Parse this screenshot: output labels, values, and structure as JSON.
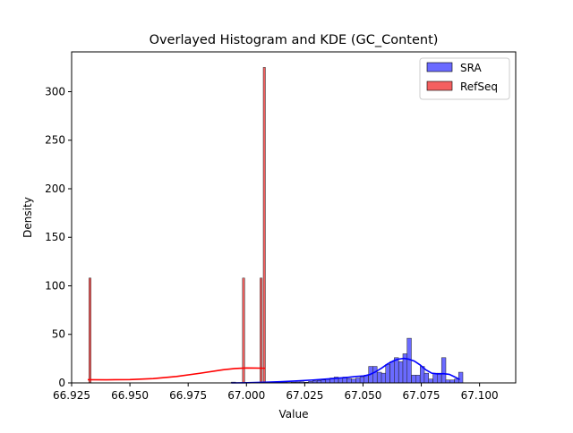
{
  "chart_data": {
    "type": "bar",
    "title": "Overlayed Histogram and KDE (GC_Content)",
    "xlabel": "Value",
    "ylabel": "Density",
    "xlim": [
      66.925,
      67.1155
    ],
    "ylim": [
      0,
      341
    ],
    "xticks": [
      66.925,
      66.95,
      66.975,
      67.0,
      67.025,
      67.05,
      67.075,
      67.1
    ],
    "xtick_labels": [
      "66.925",
      "66.950",
      "66.975",
      "67.000",
      "67.025",
      "67.050",
      "67.075",
      "67.100"
    ],
    "yticks": [
      0,
      50,
      100,
      150,
      200,
      250,
      300
    ],
    "ytick_labels": [
      "0",
      "50",
      "100",
      "150",
      "200",
      "250",
      "300"
    ],
    "grid": false,
    "legend": {
      "position": "upper right",
      "entries": [
        "SRA",
        "RefSeq"
      ]
    },
    "series": [
      {
        "name": "SRA",
        "color": "#0000ff",
        "fill": "#6a6aff",
        "bin_width": 0.00184,
        "bins": [
          [
            66.9935,
            0.8
          ],
          [
            67.01,
            1.0
          ],
          [
            67.0119,
            0.5
          ],
          [
            67.0137,
            0.6
          ],
          [
            67.0156,
            0.6
          ],
          [
            67.0174,
            0.5
          ],
          [
            67.0192,
            0.8
          ],
          [
            67.0211,
            0.9
          ],
          [
            67.0229,
            1.0
          ],
          [
            67.0248,
            0.7
          ],
          [
            67.0266,
            1.5
          ],
          [
            67.0284,
            2.0
          ],
          [
            67.0303,
            2.5
          ],
          [
            67.0321,
            3.0
          ],
          [
            67.034,
            3.5
          ],
          [
            67.0358,
            5.0
          ],
          [
            67.0376,
            6.0
          ],
          [
            67.0395,
            5.0
          ],
          [
            67.0413,
            6.0
          ],
          [
            67.0432,
            4.5
          ],
          [
            67.045,
            4.0
          ],
          [
            67.0469,
            5.0
          ],
          [
            67.0487,
            6.0
          ],
          [
            67.0505,
            8.0
          ],
          [
            67.0524,
            17.0
          ],
          [
            67.0542,
            17.0
          ],
          [
            67.0561,
            11.0
          ],
          [
            67.0579,
            10.0
          ],
          [
            67.0597,
            19.0
          ],
          [
            67.0616,
            22.0
          ],
          [
            67.0634,
            26.0
          ],
          [
            67.0653,
            22.0
          ],
          [
            67.0671,
            30.0
          ],
          [
            67.0689,
            46.0
          ],
          [
            67.0708,
            8.0
          ],
          [
            67.0726,
            8.0
          ],
          [
            67.0745,
            17.0
          ],
          [
            67.0763,
            10.0
          ],
          [
            67.0781,
            4.0
          ],
          [
            67.08,
            10.0
          ],
          [
            67.0818,
            10.0
          ],
          [
            67.0837,
            26.0
          ],
          [
            67.0855,
            3.0
          ],
          [
            67.0873,
            3.0
          ],
          [
            67.0892,
            4.0
          ],
          [
            67.091,
            11.0
          ]
        ],
        "kde": [
          [
            66.9935,
            0.0
          ],
          [
            67.0005,
            0.2
          ],
          [
            67.0075,
            0.6
          ],
          [
            67.0145,
            1.2
          ],
          [
            67.0215,
            2.0
          ],
          [
            67.0285,
            3.0
          ],
          [
            67.0355,
            4.2
          ],
          [
            67.0425,
            5.5
          ],
          [
            67.047,
            6.6
          ],
          [
            67.0505,
            7.2
          ],
          [
            67.053,
            8.7
          ],
          [
            67.0555,
            11.6
          ],
          [
            67.058,
            15.3
          ],
          [
            67.0605,
            19.5
          ],
          [
            67.063,
            22.7
          ],
          [
            67.0652,
            24.4
          ],
          [
            67.0675,
            25.3
          ],
          [
            67.0695,
            24.5
          ],
          [
            67.072,
            22.5
          ],
          [
            67.0745,
            18.5
          ],
          [
            67.077,
            13.4
          ],
          [
            67.0795,
            10.0
          ],
          [
            67.082,
            9.3
          ],
          [
            67.0845,
            9.5
          ],
          [
            67.087,
            8.8
          ],
          [
            67.0895,
            6.0
          ],
          [
            67.0915,
            3.5
          ]
        ]
      },
      {
        "name": "RefSeq",
        "color": "#ff0000",
        "fill": "#f46060",
        "bin_width": 0.00093,
        "bins": [
          [
            66.9324,
            108.0
          ],
          [
            66.9983,
            108.0
          ],
          [
            67.0058,
            108.0
          ],
          [
            67.0072,
            325.0
          ]
        ],
        "kde": [
          [
            66.9319,
            3.3
          ],
          [
            66.94,
            3.2
          ],
          [
            66.95,
            3.4
          ],
          [
            66.96,
            4.4
          ],
          [
            66.97,
            6.6
          ],
          [
            66.98,
            9.9
          ],
          [
            66.99,
            13.5
          ],
          [
            66.995,
            14.8
          ],
          [
            67.0,
            15.4
          ],
          [
            67.004,
            15.3
          ],
          [
            67.0081,
            15.1
          ]
        ]
      }
    ]
  }
}
